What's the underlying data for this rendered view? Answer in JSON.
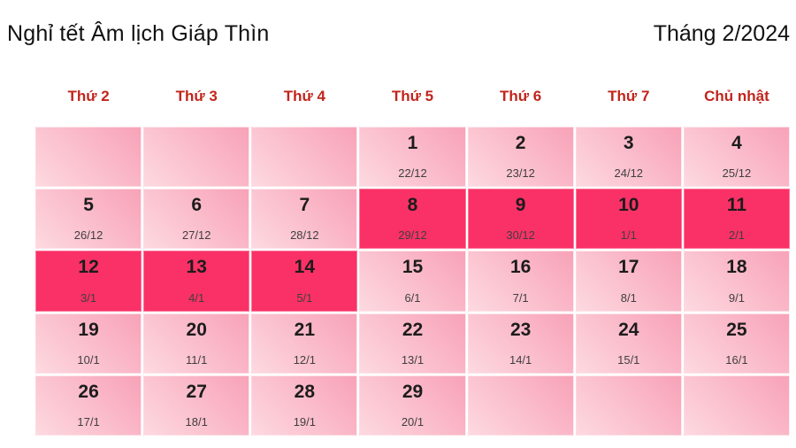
{
  "page": {
    "title_left": "Nghỉ tết Âm lịch Giáp Thìn",
    "title_right": "Tháng 2/2024"
  },
  "weekdays": [
    "Thứ 2",
    "Thứ 3",
    "Thứ 4",
    "Thứ 5",
    "Thứ 6",
    "Thứ 7",
    "Chủ nhật"
  ],
  "calendar": {
    "weeks": [
      [
        {},
        {},
        {},
        {
          "day": "1",
          "lunar": "22/12"
        },
        {
          "day": "2",
          "lunar": "23/12"
        },
        {
          "day": "3",
          "lunar": "24/12"
        },
        {
          "day": "4",
          "lunar": "25/12"
        }
      ],
      [
        {
          "day": "5",
          "lunar": "26/12"
        },
        {
          "day": "6",
          "lunar": "27/12"
        },
        {
          "day": "7",
          "lunar": "28/12"
        },
        {
          "day": "8",
          "lunar": "29/12",
          "holiday": true
        },
        {
          "day": "9",
          "lunar": "30/12",
          "holiday": true
        },
        {
          "day": "10",
          "lunar": "1/1",
          "holiday": true
        },
        {
          "day": "11",
          "lunar": "2/1",
          "holiday": true
        }
      ],
      [
        {
          "day": "12",
          "lunar": "3/1",
          "holiday": true
        },
        {
          "day": "13",
          "lunar": "4/1",
          "holiday": true
        },
        {
          "day": "14",
          "lunar": "5/1",
          "holiday": true
        },
        {
          "day": "15",
          "lunar": "6/1"
        },
        {
          "day": "16",
          "lunar": "7/1"
        },
        {
          "day": "17",
          "lunar": "8/1"
        },
        {
          "day": "18",
          "lunar": "9/1"
        }
      ],
      [
        {
          "day": "19",
          "lunar": "10/1"
        },
        {
          "day": "20",
          "lunar": "11/1"
        },
        {
          "day": "21",
          "lunar": "12/1"
        },
        {
          "day": "22",
          "lunar": "13/1"
        },
        {
          "day": "23",
          "lunar": "14/1"
        },
        {
          "day": "24",
          "lunar": "15/1"
        },
        {
          "day": "25",
          "lunar": "16/1"
        }
      ],
      [
        {
          "day": "26",
          "lunar": "17/1"
        },
        {
          "day": "27",
          "lunar": "18/1"
        },
        {
          "day": "28",
          "lunar": "19/1"
        },
        {
          "day": "29",
          "lunar": "20/1"
        },
        {},
        {},
        {}
      ]
    ]
  },
  "colors": {
    "weekday_red": "#c1251c",
    "holiday_pink": "#fa3166",
    "cell_gradient_light": "#fdd9e0",
    "cell_gradient_dark": "#f8a2b8",
    "day_text": "#1c1c1c",
    "lunar_text": "#3f3f3f"
  }
}
